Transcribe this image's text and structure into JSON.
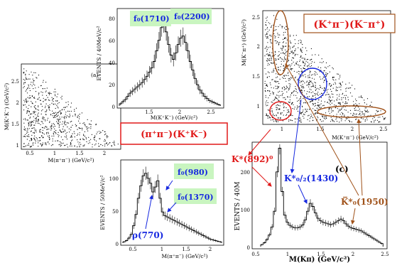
{
  "panels": {
    "a_scatter": {
      "ylabel": "M(K⁺K⁻) (GeV/c²)",
      "xlabel": "M(π⁺π⁻) (GeV/c²)",
      "panel_tag": "(a)",
      "xticks": [
        "0.5",
        "1",
        "1.5",
        "2"
      ],
      "yticks": [
        "1",
        "1.5",
        "2",
        "2.5"
      ]
    },
    "kk_hist": {
      "ylabel": "EVENTS / 40MeV/c²",
      "xlabel": "M(K⁺K⁻) (GeV/c²)",
      "xticks": [
        "1.5",
        "2",
        "2.5"
      ],
      "yticks": [
        "0",
        "20",
        "40",
        "60",
        "80"
      ],
      "labels": {
        "f0_1710": "f₀(1710)",
        "f0_2200": "f₀(2200)"
      }
    },
    "pipi_hist": {
      "ylabel": "EVENTS / 50MeV/c²",
      "xlabel": "M(π⁺π⁻) (GeV/c²)",
      "xticks": [
        "0.5",
        "1",
        "1.5",
        "2"
      ],
      "yticks": [
        "0",
        "50",
        "100"
      ],
      "labels": {
        "rho": "ρ(770)",
        "f0_980": "f₀(980)",
        "f0_1370": "f₀(1370)"
      }
    },
    "kpi_scatter": {
      "ylabel": "M(K⁻π⁺) (GeV/c²)",
      "xlabel": "M(K⁺π⁻) (GeV/c²)",
      "xticks": [
        "1",
        "1.5",
        "2",
        "2.5"
      ],
      "yticks": [
        "1",
        "1.5",
        "2",
        "2.5"
      ],
      "title": "(K⁺π⁻)(K⁻π⁺)"
    },
    "kpi_hist": {
      "ylabel": "EVENTS / 40M",
      "xlabel": "M(Kπ) (GeV/c²)",
      "panel_tag": "(c)",
      "xticks": [
        "0.5",
        "1",
        "1.5",
        "2",
        "2.5"
      ],
      "yticks": [
        "0",
        "100",
        "200"
      ],
      "labels": {
        "kstar892": "K*(892)⁰",
        "kstar1430": "K*₀/₂(1430)",
        "kstar1950": "K̅*₀(1950)"
      }
    }
  },
  "pipi_kk_title": "(π⁺π⁻)(K⁺K⁻)",
  "chart_data": [
    {
      "type": "scatter",
      "xlabel": "M(π⁺π⁻) (GeV/c²)",
      "ylabel": "M(K⁺K⁻) (GeV/c²)",
      "xlim": [
        0.25,
        2.25
      ],
      "ylim": [
        0.9,
        2.9
      ]
    },
    {
      "type": "bar",
      "xlabel": "M(K⁺K⁻) (GeV/c²)",
      "ylabel": "EVENTS / 40MeV/c²",
      "xlim": [
        1.0,
        2.7
      ],
      "ylim": [
        0,
        90
      ],
      "x": [
        1.02,
        1.06,
        1.1,
        1.14,
        1.18,
        1.22,
        1.26,
        1.3,
        1.34,
        1.38,
        1.42,
        1.46,
        1.5,
        1.54,
        1.58,
        1.62,
        1.66,
        1.7,
        1.74,
        1.78,
        1.82,
        1.86,
        1.9,
        1.94,
        1.98,
        2.02,
        2.06,
        2.1,
        2.14,
        2.18,
        2.22,
        2.26,
        2.3,
        2.34,
        2.38,
        2.42,
        2.46,
        2.5,
        2.54,
        2.58,
        2.62,
        2.66
      ],
      "values": [
        2,
        4,
        6,
        9,
        12,
        14,
        16,
        18,
        20,
        22,
        25,
        28,
        32,
        36,
        42,
        52,
        62,
        74,
        78,
        70,
        58,
        48,
        44,
        50,
        58,
        64,
        66,
        60,
        52,
        42,
        34,
        26,
        20,
        15,
        12,
        9,
        7,
        5,
        4,
        3,
        2,
        1
      ]
    },
    {
      "type": "bar",
      "xlabel": "M(π⁺π⁻) (GeV/c²)",
      "ylabel": "EVENTS / 50MeV/c²",
      "xlim": [
        0.25,
        2.3
      ],
      "ylim": [
        0,
        130
      ],
      "x": [
        0.275,
        0.325,
        0.375,
        0.425,
        0.475,
        0.525,
        0.575,
        0.625,
        0.675,
        0.725,
        0.775,
        0.825,
        0.875,
        0.925,
        0.975,
        1.025,
        1.075,
        1.125,
        1.175,
        1.225,
        1.275,
        1.325,
        1.375,
        1.425,
        1.475,
        1.525,
        1.575,
        1.625,
        1.675,
        1.725,
        1.775,
        1.825,
        1.875,
        1.925,
        1.975,
        2.025,
        2.075,
        2.125,
        2.175,
        2.225,
        2.275
      ],
      "values": [
        2,
        4,
        8,
        14,
        28,
        46,
        72,
        92,
        108,
        112,
        104,
        96,
        82,
        90,
        100,
        72,
        50,
        44,
        42,
        40,
        38,
        36,
        34,
        32,
        30,
        28,
        26,
        24,
        22,
        20,
        18,
        16,
        14,
        12,
        10,
        8,
        6,
        5,
        4,
        3,
        2
      ]
    },
    {
      "type": "scatter",
      "xlabel": "M(K⁺π⁻) (GeV/c²)",
      "ylabel": "M(K⁻π⁺) (GeV/c²)",
      "xlim": [
        0.65,
        2.65
      ],
      "ylim": [
        0.65,
        2.7
      ]
    },
    {
      "type": "bar",
      "xlabel": "M(Kπ) (GeV/c²)",
      "ylabel": "EVENTS / 40M",
      "xlim": [
        0.5,
        2.55
      ],
      "ylim": [
        0,
        260
      ],
      "x": [
        0.62,
        0.66,
        0.7,
        0.74,
        0.78,
        0.82,
        0.86,
        0.9,
        0.94,
        0.98,
        1.02,
        1.06,
        1.1,
        1.14,
        1.18,
        1.22,
        1.26,
        1.3,
        1.34,
        1.38,
        1.42,
        1.46,
        1.5,
        1.54,
        1.58,
        1.62,
        1.66,
        1.7,
        1.74,
        1.78,
        1.82,
        1.86,
        1.9,
        1.94,
        1.98,
        2.02,
        2.06,
        2.1,
        2.14,
        2.18,
        2.22,
        2.26,
        2.3,
        2.34,
        2.38,
        2.42,
        2.46,
        2.5
      ],
      "values": [
        5,
        10,
        18,
        30,
        50,
        90,
        190,
        250,
        140,
        80,
        62,
        54,
        50,
        48,
        48,
        50,
        55,
        68,
        90,
        110,
        102,
        86,
        72,
        66,
        62,
        60,
        58,
        56,
        58,
        62,
        66,
        70,
        66,
        58,
        52,
        48,
        46,
        44,
        42,
        40,
        36,
        32,
        28,
        24,
        20,
        16,
        12,
        8
      ]
    }
  ]
}
